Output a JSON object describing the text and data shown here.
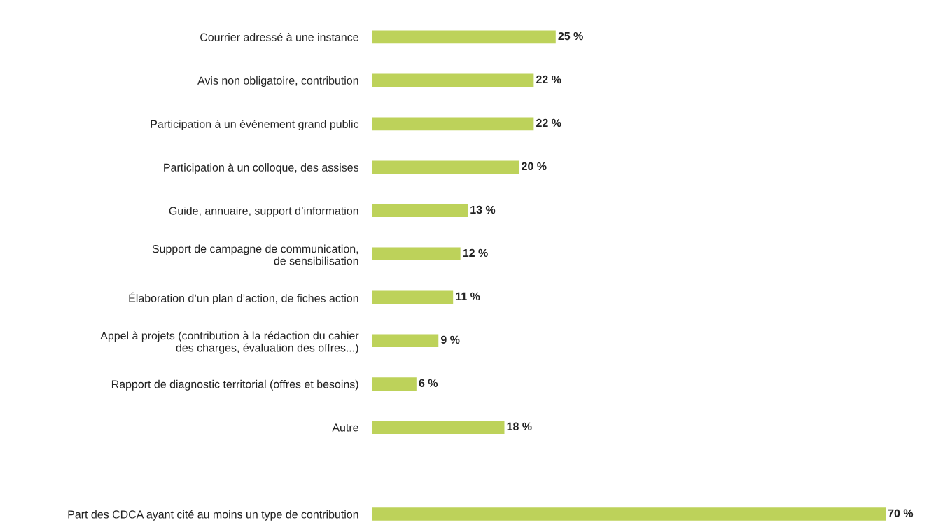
{
  "chart_data": {
    "type": "bar",
    "orientation": "horizontal",
    "color": "#bdd25a",
    "categories": [
      "Courrier adressé à une instance",
      "Avis non obligatoire, contribution",
      "Participation à un événement grand public",
      "Participation à un colloque, des assises",
      "Guide, annuaire, support d’information",
      "Support de campagne de communication,\nde sensibilisation",
      "Élaboration d’un plan d’action, de fiches action",
      "Appel à projets (contribution à la rédaction du cahier\ndes charges, évaluation des offres...)",
      "Rapport de diagnostic territorial (offres et besoins)",
      "Autre",
      null,
      "Part des CDCA ayant cité au moins un type de contribution"
    ],
    "values": [
      25,
      22,
      22,
      20,
      13,
      12,
      11,
      9,
      6,
      18,
      null,
      70
    ],
    "value_labels": [
      "25 %",
      "22 %",
      "22 %",
      "20 %",
      "13 %",
      "12 %",
      "11 %",
      "9 %",
      "6 %",
      "18 %",
      null,
      "70 %"
    ],
    "grid": false,
    "legend": false
  }
}
